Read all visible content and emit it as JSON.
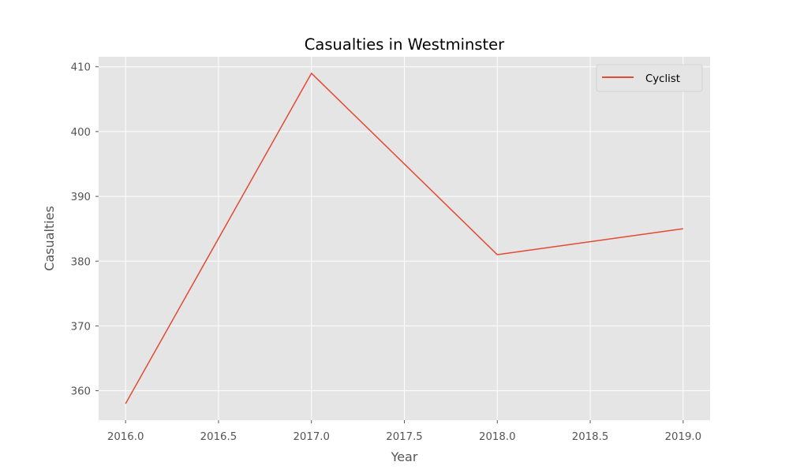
{
  "chart_data": {
    "type": "line",
    "title": "Casualties in Westminster",
    "xlabel": "Year",
    "ylabel": "Casualties",
    "x": [
      2016,
      2017,
      2018,
      2019
    ],
    "series": [
      {
        "name": "Cyclist",
        "values": [
          358,
          409,
          381,
          385
        ],
        "color": "#E24A33"
      }
    ],
    "xlim": [
      2015.855,
      2019.145
    ],
    "ylim": [
      355.45,
      411.55
    ],
    "xticks": [
      "2016.0",
      "2016.5",
      "2017.0",
      "2017.5",
      "2018.0",
      "2018.5",
      "2019.0"
    ],
    "yticks": [
      "360",
      "370",
      "380",
      "390",
      "400",
      "410"
    ],
    "grid": true,
    "legend_position": "top-right",
    "background": "#E5E5E5",
    "grid_color": "#FFFFFF"
  }
}
